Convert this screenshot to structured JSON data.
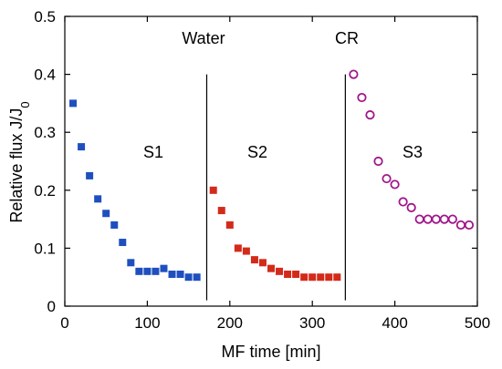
{
  "chart_data": {
    "type": "scatter",
    "title": "",
    "xlabel": "MF time [min]",
    "ylabel": "Relative flux J/J",
    "ylabel_subscript": "0",
    "xlim": [
      0,
      500
    ],
    "ylim": [
      0,
      0.5
    ],
    "x_ticks": [
      "0",
      "100",
      "200",
      "300",
      "400",
      "500"
    ],
    "y_ticks": [
      "0",
      "0.1",
      "0.2",
      "0.3",
      "0.4",
      "0.5"
    ],
    "grid": false,
    "legend": "none",
    "annotations": {
      "water": "Water",
      "cr": "CR",
      "s1": "S1",
      "s2": "S2",
      "s3": "S3"
    },
    "dividers_x": [
      172,
      340
    ],
    "series": [
      {
        "marker": "filled-square",
        "color": "#1f4fbf",
        "x": [
          10,
          20,
          30,
          40,
          50,
          60,
          70,
          80,
          90,
          100,
          110,
          120,
          130,
          140,
          150,
          160
        ],
        "y": [
          0.35,
          0.275,
          0.225,
          0.185,
          0.16,
          0.14,
          0.11,
          0.075,
          0.06,
          0.06,
          0.06,
          0.065,
          0.055,
          0.055,
          0.05,
          0.05
        ]
      },
      {
        "marker": "filled-square",
        "color": "#d42a1a",
        "x": [
          180,
          190,
          200,
          210,
          220,
          230,
          240,
          250,
          260,
          270,
          280,
          290,
          300,
          310,
          320,
          330
        ],
        "y": [
          0.2,
          0.165,
          0.14,
          0.1,
          0.095,
          0.08,
          0.075,
          0.065,
          0.06,
          0.055,
          0.055,
          0.05,
          0.05,
          0.05,
          0.05,
          0.05
        ]
      },
      {
        "marker": "open-circle",
        "color": "#a0178a",
        "x": [
          350,
          360,
          370,
          380,
          390,
          400,
          410,
          420,
          430,
          440,
          450,
          460,
          470,
          480,
          490
        ],
        "y": [
          0.4,
          0.36,
          0.33,
          0.25,
          0.22,
          0.21,
          0.18,
          0.17,
          0.15,
          0.15,
          0.15,
          0.15,
          0.15,
          0.14,
          0.14
        ]
      }
    ]
  }
}
